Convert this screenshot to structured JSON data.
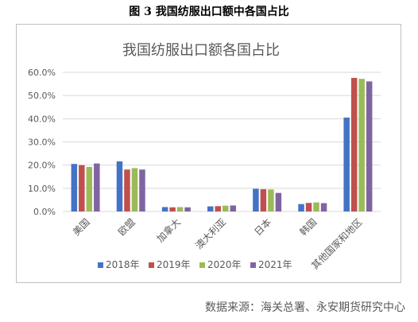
{
  "figure_caption": "图 3  我国纺服出口额中各国占比",
  "source_note": "数据来源：海关总署、永安期货研究中心",
  "colors": {
    "series": [
      "#4472c4",
      "#c0504d",
      "#9bbb59",
      "#8064a2"
    ],
    "grid": "#d9d9d9",
    "axis_text": "#595959",
    "title_text": "#595959"
  },
  "chart_data": {
    "type": "bar",
    "title": "我国纺服出口额各国占比",
    "categories": [
      "美国",
      "欧盟",
      "加拿大",
      "澳大利亚",
      "日本",
      "韩国",
      "其他国家和地区"
    ],
    "series": [
      {
        "name": "2018年",
        "values": [
          20.5,
          21.6,
          1.9,
          2.2,
          9.8,
          3.2,
          40.5
        ]
      },
      {
        "name": "2019年",
        "values": [
          20.0,
          18.1,
          1.8,
          2.3,
          9.6,
          3.7,
          57.6
        ]
      },
      {
        "name": "2020年",
        "values": [
          19.2,
          18.7,
          1.9,
          2.5,
          9.5,
          3.9,
          57.2
        ]
      },
      {
        "name": "2021年",
        "values": [
          20.7,
          18.1,
          1.8,
          2.6,
          8.0,
          3.6,
          56.1
        ]
      }
    ],
    "ylim": [
      0,
      60
    ],
    "yticks": [
      "0.0%",
      "10.0%",
      "20.0%",
      "30.0%",
      "40.0%",
      "50.0%",
      "60.0%"
    ],
    "grid": true,
    "legend_position": "bottom"
  }
}
